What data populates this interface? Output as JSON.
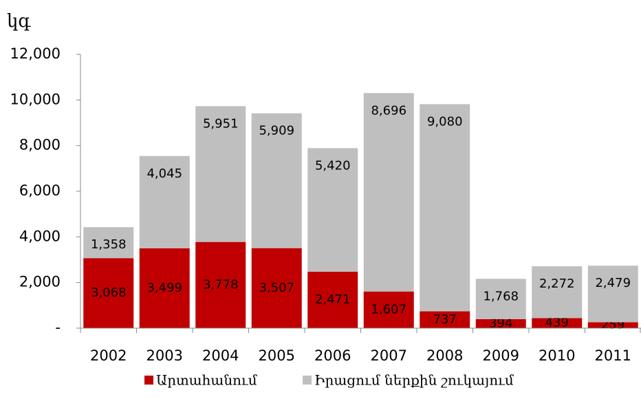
{
  "chart_data": {
    "type": "stacked_bar",
    "y_axis_label": "կգ",
    "categories": [
      "2002",
      "2003",
      "2004",
      "2005",
      "2006",
      "2007",
      "2008",
      "2009",
      "2010",
      "2011"
    ],
    "series": [
      {
        "name": "Արտահանում",
        "color": "#c00000",
        "values": [
          3068,
          3499,
          3778,
          3507,
          2471,
          1607,
          737,
          394,
          439,
          259
        ],
        "value_labels": [
          "3,068",
          "3,499",
          "3,778",
          "3,507",
          "2,471",
          "1,607",
          "737",
          "394",
          "439",
          "259"
        ]
      },
      {
        "name": "Իրացում ներքին շուկայում",
        "color": "#bfbfbf",
        "values": [
          1358,
          4045,
          5951,
          5909,
          5420,
          8696,
          9080,
          1768,
          2272,
          2479
        ],
        "value_labels": [
          "1,358",
          "4,045",
          "5,951",
          "5,909",
          "5,420",
          "8,696",
          "9,080",
          "1,768",
          "2,272",
          "2,479"
        ]
      }
    ],
    "ylim": [
      0,
      12000
    ],
    "yticks": [
      {
        "value": 0,
        "label": "-"
      },
      {
        "value": 2000,
        "label": "2,000"
      },
      {
        "value": 4000,
        "label": "4,000"
      },
      {
        "value": 6000,
        "label": "6,000"
      },
      {
        "value": 8000,
        "label": "8,000"
      },
      {
        "value": 10000,
        "label": "10,000"
      },
      {
        "value": 12000,
        "label": "12,000"
      }
    ],
    "legend": "bottom"
  }
}
